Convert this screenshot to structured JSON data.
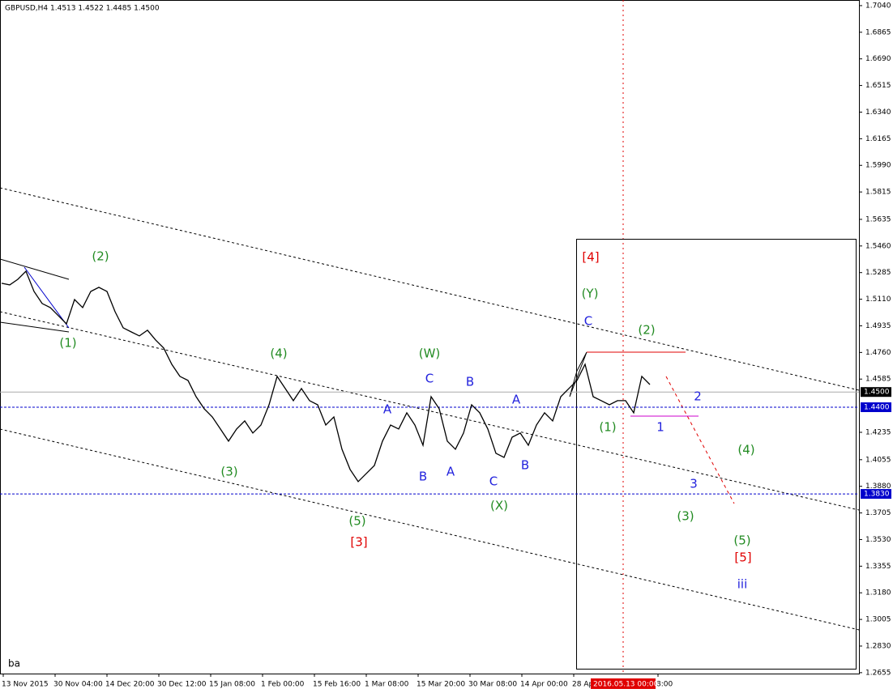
{
  "chart_data": {
    "type": "line",
    "title": "GBPUSD,H4  1.4513 1.4522 1.4485 1.4500",
    "corner_text": "ba",
    "ylim": [
      1.2649,
      1.7077
    ],
    "yticks": [
      {
        "value": 1.704,
        "label": "1.7040"
      },
      {
        "value": 1.6865,
        "label": "1.6865"
      },
      {
        "value": 1.669,
        "label": "1.6690"
      },
      {
        "value": 1.6515,
        "label": "1.6515"
      },
      {
        "value": 1.634,
        "label": "1.6340"
      },
      {
        "value": 1.6165,
        "label": "1.6165"
      },
      {
        "value": 1.599,
        "label": "1.5990"
      },
      {
        "value": 1.5815,
        "label": "1.5815"
      },
      {
        "value": 1.5635,
        "label": "1.5635"
      },
      {
        "value": 1.546,
        "label": "1.5460"
      },
      {
        "value": 1.5285,
        "label": "1.5285"
      },
      {
        "value": 1.511,
        "label": "1.5110"
      },
      {
        "value": 1.4935,
        "label": "1.4935"
      },
      {
        "value": 1.476,
        "label": "1.4760"
      },
      {
        "value": 1.4585,
        "label": "1.4585"
      },
      {
        "value": 1.4235,
        "label": "1.4235"
      },
      {
        "value": 1.4055,
        "label": "1.4055"
      },
      {
        "value": 1.388,
        "label": "1.3880"
      },
      {
        "value": 1.3705,
        "label": "1.3705"
      },
      {
        "value": 1.353,
        "label": "1.3530"
      },
      {
        "value": 1.3355,
        "label": "1.3355"
      },
      {
        "value": 1.318,
        "label": "1.3180"
      },
      {
        "value": 1.3005,
        "label": "1.3005"
      },
      {
        "value": 1.283,
        "label": "1.2830"
      },
      {
        "value": 1.2655,
        "label": "1.2655"
      }
    ],
    "x_labels": [
      "13 Nov 2015",
      "30 Nov 04:00",
      "14 Dec 20:00",
      "30 Dec 12:00",
      "15 Jan 08:00",
      "1 Feb 00:00",
      "15 Feb 16:00",
      "1 Mar 08:00",
      "15 Mar 20:00",
      "30 Mar 08:00",
      "14 Apr 00:00",
      "28 Ap",
      "8:00"
    ],
    "cursor_time": "2016.05.13 00:00",
    "price_lines": [
      {
        "value": 1.45,
        "label": "1.4500",
        "color": "#aaaaaa",
        "box": "#000000"
      },
      {
        "value": 1.44,
        "label": "1.4400",
        "color": "#0000cc",
        "box": "#0000cc"
      },
      {
        "value": 1.383,
        "label": "1.3830",
        "color": "#0000cc",
        "box": "#0000cc"
      }
    ],
    "series": [
      {
        "name": "GBPUSD",
        "color": "#000000",
        "values": [
          1.5215,
          1.5204,
          1.5241,
          1.5294,
          1.5161,
          1.5082,
          1.5055,
          1.5002,
          1.4948,
          1.5108,
          1.5055,
          1.5161,
          1.5188,
          1.5161,
          1.5028,
          1.4922,
          1.4895,
          1.4869,
          1.4906,
          1.4842,
          1.4789,
          1.4682,
          1.4603,
          1.4576,
          1.4469,
          1.439,
          1.4336,
          1.4257,
          1.4177,
          1.4257,
          1.431,
          1.423,
          1.4283,
          1.4416,
          1.4603,
          1.4523,
          1.4443,
          1.4523,
          1.4443,
          1.4416,
          1.4283,
          1.4336,
          1.4124,
          1.3991,
          1.3911,
          1.3964,
          1.4017,
          1.4177,
          1.4283,
          1.4257,
          1.4363,
          1.4283,
          1.415,
          1.4469,
          1.439,
          1.4177,
          1.4124,
          1.423,
          1.4416,
          1.4363,
          1.4257,
          1.4097,
          1.407,
          1.4203,
          1.423,
          1.415,
          1.4283,
          1.4363,
          1.431,
          1.4469,
          1.4523,
          1.4576,
          1.4682,
          1.4469,
          1.4443,
          1.4416,
          1.4443,
          1.4443,
          1.4363,
          1.4603,
          1.4549
        ]
      }
    ],
    "annotations": [
      {
        "text": "(2)",
        "color": "#228b22"
      },
      {
        "text": "(1)",
        "color": "#228b22"
      },
      {
        "text": "(4)",
        "color": "#228b22"
      },
      {
        "text": "(3)",
        "color": "#228b22"
      },
      {
        "text": "(5)",
        "color": "#228b22"
      },
      {
        "text": "[3]",
        "color": "#e00000"
      },
      {
        "text": "A",
        "color": "#2222dd"
      },
      {
        "text": "(W)",
        "color": "#228b22"
      },
      {
        "text": "C",
        "color": "#2222dd"
      },
      {
        "text": "B",
        "color": "#2222dd"
      },
      {
        "text": "B",
        "color": "#2222dd"
      },
      {
        "text": "A",
        "color": "#2222dd"
      },
      {
        "text": "C",
        "color": "#2222dd"
      },
      {
        "text": "(X)",
        "color": "#228b22"
      },
      {
        "text": "A",
        "color": "#2222dd"
      },
      {
        "text": "B",
        "color": "#2222dd"
      },
      {
        "text": "[4]",
        "color": "#e00000"
      },
      {
        "text": "(Y)",
        "color": "#228b22"
      },
      {
        "text": "C",
        "color": "#2222dd"
      },
      {
        "text": "(2)",
        "color": "#228b22"
      },
      {
        "text": "(1)",
        "color": "#228b22"
      },
      {
        "text": "1",
        "color": "#2222dd"
      },
      {
        "text": "2",
        "color": "#2222dd"
      },
      {
        "text": "3",
        "color": "#2222dd"
      },
      {
        "text": "(4)",
        "color": "#228b22"
      },
      {
        "text": "(3)",
        "color": "#228b22"
      },
      {
        "text": "(5)",
        "color": "#228b22"
      },
      {
        "text": "[5]",
        "color": "#e00000"
      },
      {
        "text": "iii",
        "color": "#2222dd"
      }
    ]
  }
}
